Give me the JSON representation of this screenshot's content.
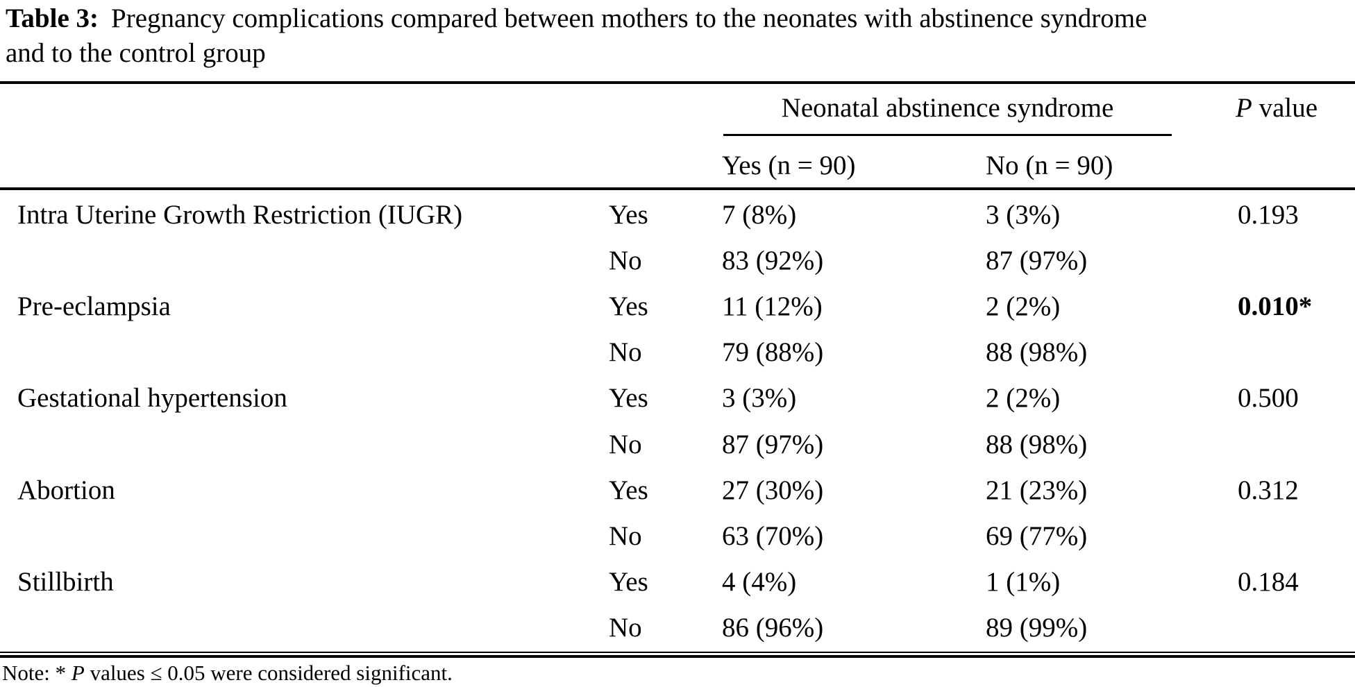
{
  "caption": {
    "label": "Table 3:",
    "line1": "Pregnancy complications compared between mothers to the neonates with abstinence syndrome",
    "line2": "and to the control group"
  },
  "table": {
    "group_header": "Neonatal abstinence syndrome",
    "p_header": {
      "italic": "P",
      "rest": " value"
    },
    "subheaders": {
      "yes": "Yes (n = 90)",
      "no": "No (n = 90)"
    },
    "rows": [
      {
        "complication": "Intra Uterine Growth Restriction (IUGR)",
        "status": "Yes",
        "nas_yes": "7 (8%)",
        "nas_no": "3 (3%)",
        "p_value": "0.193",
        "p_bold": false
      },
      {
        "complication": "",
        "status": "No",
        "nas_yes": "83 (92%)",
        "nas_no": "87 (97%)",
        "p_value": "",
        "p_bold": false
      },
      {
        "complication": "Pre-eclampsia",
        "status": "Yes",
        "nas_yes": "11 (12%)",
        "nas_no": "2 (2%)",
        "p_value": "0.010*",
        "p_bold": true
      },
      {
        "complication": "",
        "status": "No",
        "nas_yes": "79 (88%)",
        "nas_no": "88 (98%)",
        "p_value": "",
        "p_bold": false
      },
      {
        "complication": "Gestational hypertension",
        "status": "Yes",
        "nas_yes": "3 (3%)",
        "nas_no": "2 (2%)",
        "p_value": "0.500",
        "p_bold": false
      },
      {
        "complication": "",
        "status": "No",
        "nas_yes": "87 (97%)",
        "nas_no": "88 (98%)",
        "p_value": "",
        "p_bold": false
      },
      {
        "complication": "Abortion",
        "status": "Yes",
        "nas_yes": "27 (30%)",
        "nas_no": "21 (23%)",
        "p_value": "0.312",
        "p_bold": false
      },
      {
        "complication": "",
        "status": "No",
        "nas_yes": "63 (70%)",
        "nas_no": "69 (77%)",
        "p_value": "",
        "p_bold": false
      },
      {
        "complication": "Stillbirth",
        "status": "Yes",
        "nas_yes": "4 (4%)",
        "nas_no": "1 (1%)",
        "p_value": "0.184",
        "p_bold": false
      },
      {
        "complication": "",
        "status": "No",
        "nas_yes": "86 (96%)",
        "nas_no": "89 (99%)",
        "p_value": "",
        "p_bold": false
      }
    ]
  },
  "note": {
    "prefix": "Note: * ",
    "italic": "P",
    "rest": " values ≤ 0.05 were considered significant."
  },
  "colors": {
    "text": "#000000",
    "background": "#ffffff",
    "rule": "#000000"
  }
}
